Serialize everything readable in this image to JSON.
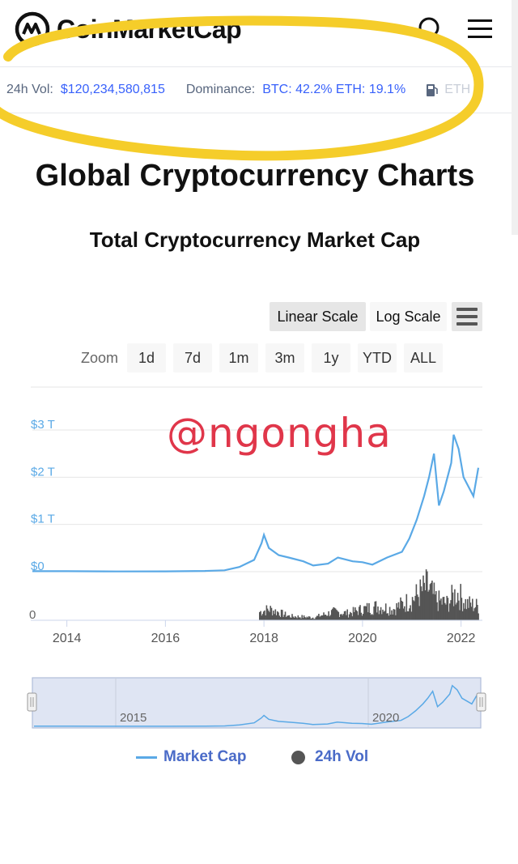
{
  "header": {
    "brand": "CoinMarketCap",
    "search_icon": "search-icon",
    "menu_icon": "hamburger-menu-icon"
  },
  "ticker": {
    "vol_label": "24h Vol:",
    "vol_value": "$120,234,580,815",
    "dominance_label": "Dominance:",
    "dominance_value": "BTC: 42.2% ETH: 19.1%",
    "gas_icon": "gas-pump-icon",
    "eth_gas_text": "ETH"
  },
  "page_title": "Global Cryptocurrency Charts",
  "chart_title": "Total Cryptocurrency Market Cap",
  "scale_buttons": {
    "linear": "Linear Scale",
    "log": "Log Scale"
  },
  "chart_menu_icon": "chart-menu-icon",
  "zoom": {
    "label": "Zoom",
    "options": [
      "1d",
      "7d",
      "1m",
      "3m",
      "1y",
      "YTD",
      "ALL"
    ]
  },
  "watermark": "@ngongha",
  "colors": {
    "accent": "#3861fb",
    "line": "#5aa9e6",
    "volume": "#555555",
    "highlight": "#f5cd2a",
    "watermark": "#e0364a"
  },
  "chart_data": {
    "type": "line",
    "y_axis": {
      "tick_labels": [
        "$3 T",
        "$2 T",
        "$1 T",
        "$0"
      ],
      "ylim": [
        0,
        3.2
      ]
    },
    "volume_axis": {
      "tick_labels": [
        "0"
      ]
    },
    "x_axis": {
      "tick_labels": [
        "2014",
        "2016",
        "2018",
        "2020",
        "2022"
      ],
      "xlim": [
        2013.3,
        2022.4
      ]
    },
    "series": [
      {
        "name": "Market Cap",
        "x": [
          2013.3,
          2014.0,
          2015.0,
          2016.0,
          2016.8,
          2017.2,
          2017.5,
          2017.8,
          2017.95,
          2018.0,
          2018.1,
          2018.3,
          2018.5,
          2018.8,
          2019.0,
          2019.3,
          2019.5,
          2019.8,
          2020.0,
          2020.2,
          2020.5,
          2020.8,
          2020.95,
          2021.1,
          2021.25,
          2021.35,
          2021.45,
          2021.55,
          2021.65,
          2021.8,
          2021.85,
          2021.95,
          2022.05,
          2022.15,
          2022.25,
          2022.35
        ],
        "values": [
          0.01,
          0.01,
          0.005,
          0.007,
          0.015,
          0.03,
          0.1,
          0.25,
          0.6,
          0.78,
          0.5,
          0.35,
          0.3,
          0.22,
          0.13,
          0.17,
          0.3,
          0.22,
          0.2,
          0.15,
          0.3,
          0.42,
          0.7,
          1.1,
          1.6,
          2.0,
          2.5,
          1.4,
          1.7,
          2.3,
          2.9,
          2.6,
          2.0,
          1.8,
          1.6,
          2.2
        ]
      },
      {
        "name": "24h Vol",
        "x": [
          2017.9,
          2018.1,
          2018.5,
          2019.0,
          2019.4,
          2019.7,
          2020.0,
          2020.3,
          2020.6,
          2021.0,
          2021.3,
          2021.5,
          2021.7,
          2021.9,
          2022.1,
          2022.35
        ],
        "values": [
          0.06,
          0.08,
          0.03,
          0.02,
          0.06,
          0.05,
          0.08,
          0.1,
          0.08,
          0.15,
          0.24,
          0.14,
          0.12,
          0.2,
          0.12,
          0.1
        ]
      }
    ],
    "navigator": {
      "tick_labels": [
        "2015",
        "2020"
      ]
    },
    "legend": {
      "placement": "bottom",
      "entries": [
        "Market Cap",
        "24h Vol"
      ]
    }
  }
}
